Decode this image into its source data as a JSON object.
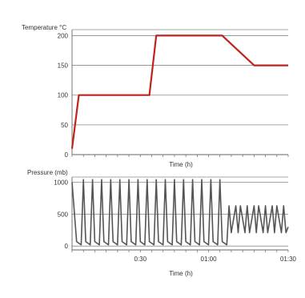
{
  "chart_data": [
    {
      "type": "line",
      "ylabel": "Temperature °C",
      "xlabel": "Time (h)",
      "ylim": [
        0,
        210
      ],
      "yticks": [
        0,
        50,
        100,
        150,
        200
      ],
      "xlim": [
        0,
        95
      ],
      "grid": true,
      "color": "#c0221e",
      "series": [
        {
          "x": [
            0,
            3,
            3.5,
            33,
            34,
            37,
            65,
            66,
            80,
            81,
            95
          ],
          "y": [
            10,
            100,
            100,
            100,
            100,
            200,
            200,
            200,
            150,
            150,
            150
          ]
        }
      ]
    },
    {
      "type": "line",
      "ylabel": "Pressure (mb)",
      "xlabel": "Time (h)",
      "ylim": [
        -60,
        1080
      ],
      "yticks": [
        0,
        500,
        1000
      ],
      "xlim": [
        0,
        95
      ],
      "xtick_labels": [
        "0:30",
        "01:00",
        "01:30"
      ],
      "xtick_values": [
        30,
        60,
        95
      ],
      "grid": true,
      "color": "#555555",
      "series": [
        {
          "x": [
            0,
            2,
            4,
            5,
            6,
            8,
            9,
            10,
            12,
            13,
            14,
            16,
            17,
            18,
            20,
            21,
            22,
            24,
            25,
            26,
            28,
            29,
            30,
            32,
            33,
            34,
            36,
            37,
            38,
            40,
            41,
            42,
            44,
            45,
            46,
            48,
            49,
            50,
            52,
            53,
            54,
            56,
            57,
            58,
            60,
            61,
            62,
            64,
            65,
            66,
            68,
            69,
            70,
            72,
            73,
            74,
            76,
            77,
            78,
            80,
            81,
            82,
            84,
            85,
            86,
            88,
            89,
            90,
            92,
            93,
            94,
            95
          ],
          "y": [
            1000,
            70,
            20,
            1040,
            70,
            20,
            1040,
            70,
            20,
            1040,
            70,
            20,
            1040,
            70,
            20,
            1040,
            70,
            20,
            1040,
            70,
            20,
            1040,
            70,
            20,
            1040,
            70,
            20,
            1040,
            70,
            20,
            1040,
            70,
            20,
            1040,
            70,
            20,
            1040,
            70,
            20,
            1040,
            70,
            20,
            1040,
            70,
            20,
            1040,
            70,
            20,
            1040,
            70,
            20,
            630,
            210,
            630,
            210,
            630,
            210,
            630,
            210,
            630,
            210,
            630,
            210,
            630,
            210,
            630,
            210,
            630,
            210,
            630,
            210,
            300
          ]
        }
      ]
    }
  ]
}
